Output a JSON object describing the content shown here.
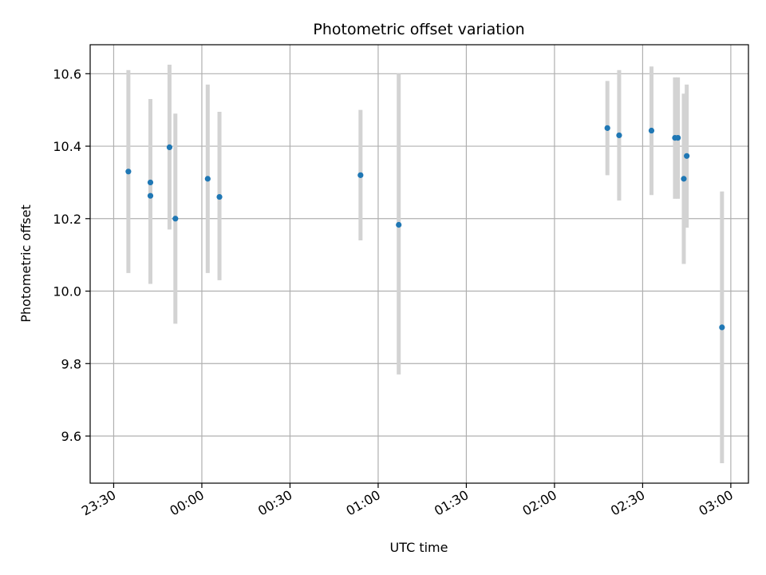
{
  "chart_data": {
    "type": "scatter",
    "title": "Photometric offset variation",
    "xlabel": "UTC time",
    "ylabel": "Photometric offset",
    "xlim": [
      "23:22",
      "03:06"
    ],
    "ylim": [
      9.47,
      10.68
    ],
    "x_ticks": [
      "23:30",
      "00:00",
      "00:30",
      "01:00",
      "01:30",
      "02:00",
      "02:30",
      "03:00"
    ],
    "y_ticks": [
      9.6,
      9.8,
      10.0,
      10.2,
      10.4,
      10.6
    ],
    "grid": true,
    "colors": {
      "points": "#1f77b4",
      "error_bars": "#d3d3d3",
      "grid": "#b0b0b0"
    },
    "points": [
      {
        "x": "23:35",
        "y": 10.33,
        "yerr_low": 10.05,
        "yerr_high": 10.61
      },
      {
        "x": "23:42.5",
        "y": 10.3,
        "yerr_low": 10.02,
        "yerr_high": 10.53
      },
      {
        "x": "23:42.5",
        "y": 10.263,
        "yerr_low": 10.02,
        "yerr_high": 10.51
      },
      {
        "x": "23:49",
        "y": 10.397,
        "yerr_low": 10.17,
        "yerr_high": 10.625
      },
      {
        "x": "23:51",
        "y": 10.2,
        "yerr_low": 9.91,
        "yerr_high": 10.49
      },
      {
        "x": "00:02",
        "y": 10.31,
        "yerr_low": 10.05,
        "yerr_high": 10.57
      },
      {
        "x": "00:06",
        "y": 10.26,
        "yerr_low": 10.03,
        "yerr_high": 10.495
      },
      {
        "x": "00:54",
        "y": 10.32,
        "yerr_low": 10.14,
        "yerr_high": 10.5
      },
      {
        "x": "01:07",
        "y": 10.183,
        "yerr_low": 9.77,
        "yerr_high": 10.6
      },
      {
        "x": "02:18",
        "y": 10.45,
        "yerr_low": 10.32,
        "yerr_high": 10.58
      },
      {
        "x": "02:22",
        "y": 10.43,
        "yerr_low": 10.25,
        "yerr_high": 10.61
      },
      {
        "x": "02:33",
        "y": 10.443,
        "yerr_low": 10.265,
        "yerr_high": 10.62
      },
      {
        "x": "02:41",
        "y": 10.423,
        "yerr_low": 10.255,
        "yerr_high": 10.59
      },
      {
        "x": "02:42",
        "y": 10.423,
        "yerr_low": 10.255,
        "yerr_high": 10.59
      },
      {
        "x": "02:44",
        "y": 10.31,
        "yerr_low": 10.075,
        "yerr_high": 10.545
      },
      {
        "x": "02:45",
        "y": 10.373,
        "yerr_low": 10.175,
        "yerr_high": 10.57
      },
      {
        "x": "02:57",
        "y": 9.9,
        "yerr_low": 9.525,
        "yerr_high": 10.275
      }
    ]
  }
}
